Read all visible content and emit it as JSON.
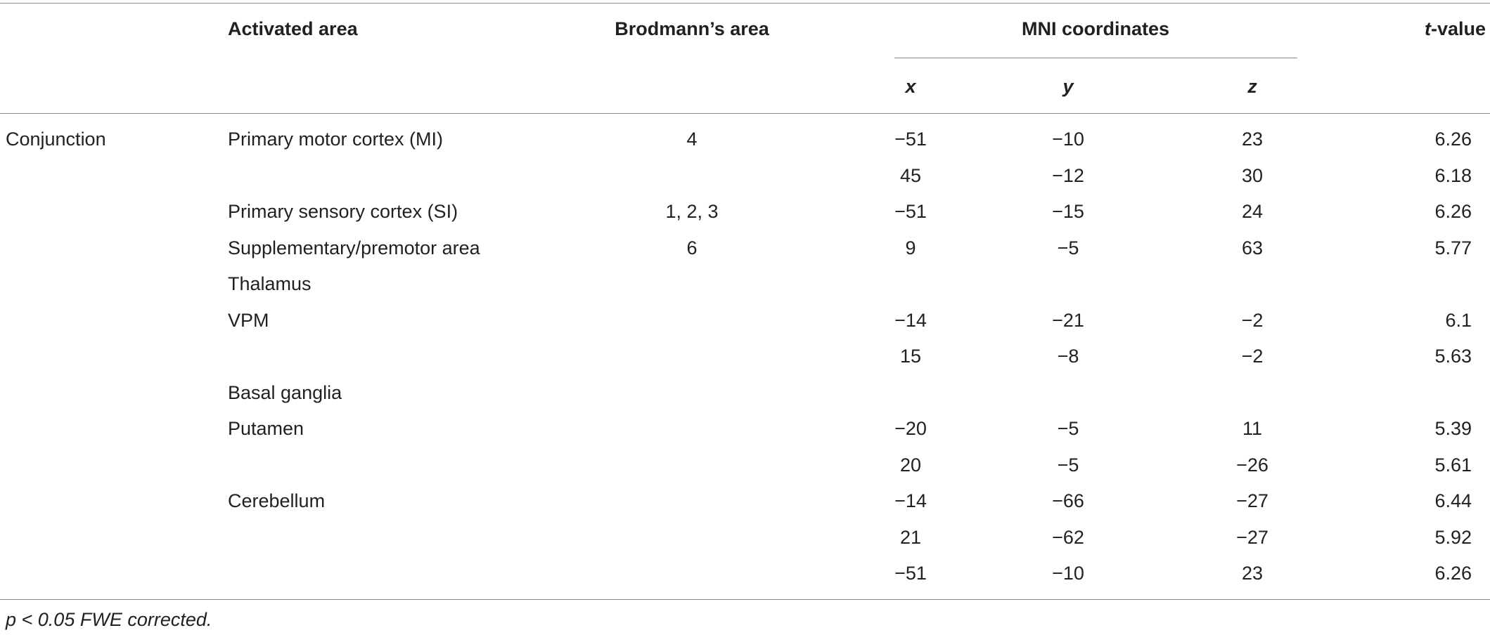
{
  "table": {
    "headers": {
      "activated_area": "Activated area",
      "brodmann": "Brodmann’s area",
      "mni": "MNI coordinates",
      "x": "x",
      "y": "y",
      "z": "z",
      "t_prefix": "t",
      "t_suffix": "-value"
    },
    "rows": [
      {
        "group": "Conjunction",
        "area": "Primary motor cortex (MI)",
        "ba": "4",
        "x": "−51",
        "y": "−10",
        "z": "23",
        "t": "6.26"
      },
      {
        "group": "",
        "area": "",
        "ba": "",
        "x": "45",
        "y": "−12",
        "z": "30",
        "t": "6.18"
      },
      {
        "group": "",
        "area": "Primary sensory cortex (SI)",
        "ba": "1, 2, 3",
        "x": "−51",
        "y": "−15",
        "z": "24",
        "t": "6.26"
      },
      {
        "group": "",
        "area": "Supplementary/premotor area",
        "ba": "6",
        "x": "9",
        "y": "−5",
        "z": "63",
        "t": "5.77"
      },
      {
        "group": "",
        "area": "Thalamus",
        "ba": "",
        "x": "",
        "y": "",
        "z": "",
        "t": ""
      },
      {
        "group": "",
        "area": "VPM",
        "ba": "",
        "x": "−14",
        "y": "−21",
        "z": "−2",
        "t": "6.1"
      },
      {
        "group": "",
        "area": "",
        "ba": "",
        "x": "15",
        "y": "−8",
        "z": "−2",
        "t": "5.63"
      },
      {
        "group": "",
        "area": "Basal ganglia",
        "ba": "",
        "x": "",
        "y": "",
        "z": "",
        "t": ""
      },
      {
        "group": "",
        "area": "Putamen",
        "ba": "",
        "x": "−20",
        "y": "−5",
        "z": "11",
        "t": "5.39"
      },
      {
        "group": "",
        "area": "",
        "ba": "",
        "x": "20",
        "y": "−5",
        "z": "−26",
        "t": "5.61"
      },
      {
        "group": "",
        "area": "Cerebellum",
        "ba": "",
        "x": "−14",
        "y": "−66",
        "z": "−27",
        "t": "6.44"
      },
      {
        "group": "",
        "area": "",
        "ba": "",
        "x": "21",
        "y": "−62",
        "z": "−27",
        "t": "5.92"
      },
      {
        "group": "",
        "area": "",
        "ba": "",
        "x": "−51",
        "y": "−10",
        "z": "23",
        "t": "6.26"
      }
    ]
  },
  "footnote": "p < 0.05 FWE corrected."
}
